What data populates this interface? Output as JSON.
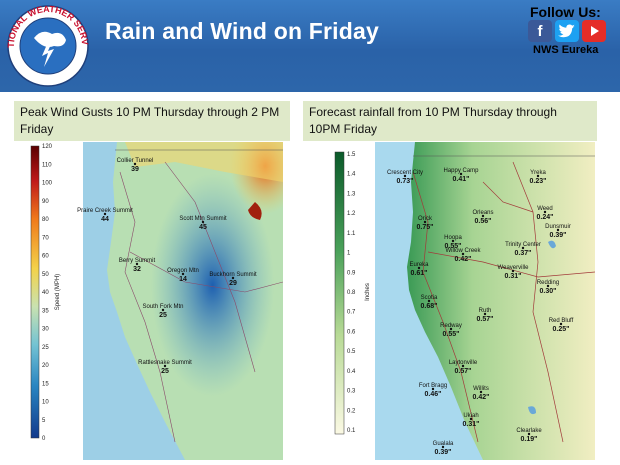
{
  "header": {
    "title": "Rain and Wind on Friday",
    "follow_label": "Follow Us:",
    "handle": "NWS Eureka",
    "seal_text": "NATIONAL WEATHER SERVICE",
    "social": [
      {
        "name": "facebook",
        "glyph": "f",
        "color": "#3b5998"
      },
      {
        "name": "twitter",
        "glyph": "t",
        "color": "#1da1f2"
      },
      {
        "name": "youtube",
        "glyph": "▶",
        "color": "#e52d27"
      }
    ]
  },
  "wind_panel": {
    "title": "Peak Wind Gusts  10 PM Thursday through  2 PM Friday",
    "colorbar_label": "Speed (MPH)",
    "colorbar_ticks": [
      "120",
      "110",
      "100",
      "90",
      "80",
      "70",
      "60",
      "50",
      "40",
      "35",
      "30",
      "25",
      "20",
      "15",
      "10",
      "5",
      "0"
    ],
    "stations": [
      {
        "name": "Collier Tunnel",
        "value": "39"
      },
      {
        "name": "Praire Creek Summit",
        "value": "44"
      },
      {
        "name": "Scott Mtn Summit",
        "value": "45"
      },
      {
        "name": "Berry Summit",
        "value": "32"
      },
      {
        "name": "Oregon Mtn",
        "value": "14"
      },
      {
        "name": "Buckhorn Summit",
        "value": "29"
      },
      {
        "name": "South Fork Mtn",
        "value": "25"
      },
      {
        "name": "Rattlesnake Summit",
        "value": "25"
      }
    ]
  },
  "rain_panel": {
    "title": "Forecast rainfall from 10 PM Thursday through 10PM Friday",
    "colorbar_label": "Inches",
    "colorbar_ticks": [
      "1.5",
      "1.4",
      "1.3",
      "1.2",
      "1.1",
      "1",
      "0.9",
      "0.8",
      "0.7",
      "0.6",
      "0.5",
      "0.4",
      "0.3",
      "0.2",
      "0.1"
    ],
    "stations": [
      {
        "name": "Crescent City",
        "value": "0.73\""
      },
      {
        "name": "Happy Camp",
        "value": "0.41\""
      },
      {
        "name": "Yreka",
        "value": "0.23\""
      },
      {
        "name": "Weed",
        "value": "0.24\""
      },
      {
        "name": "Dunsmuir",
        "value": "0.39\""
      },
      {
        "name": "Orick",
        "value": "0.75\""
      },
      {
        "name": "Orleans",
        "value": "0.56\""
      },
      {
        "name": "Hoopa",
        "value": "0.55\""
      },
      {
        "name": "Willow Creek",
        "value": "0.42\""
      },
      {
        "name": "Trinity Center",
        "value": "0.37\""
      },
      {
        "name": "Eureka",
        "value": "0.61\""
      },
      {
        "name": "Weaverville",
        "value": "0.31\""
      },
      {
        "name": "Scotia",
        "value": "0.68\""
      },
      {
        "name": "Redding",
        "value": "0.30\""
      },
      {
        "name": "Ruth",
        "value": "0.57\""
      },
      {
        "name": "Redway",
        "value": "0.55\""
      },
      {
        "name": "Red Bluff",
        "value": "0.25\""
      },
      {
        "name": "Laytonville",
        "value": "0.57\""
      },
      {
        "name": "Fort Bragg",
        "value": "0.46\""
      },
      {
        "name": "Willits",
        "value": "0.42\""
      },
      {
        "name": "Ukiah",
        "value": "0.31\""
      },
      {
        "name": "Clearlake",
        "value": "0.19\""
      },
      {
        "name": "Gualala",
        "value": "0.39\""
      }
    ]
  }
}
